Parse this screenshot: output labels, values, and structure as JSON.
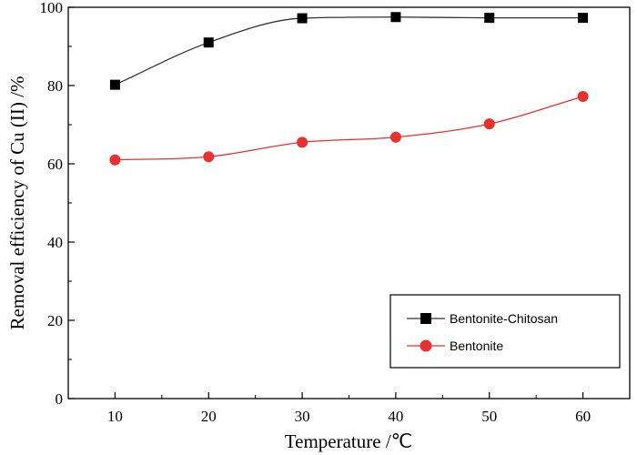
{
  "chart_data": {
    "type": "line",
    "title": "",
    "xlabel": "Temperature /℃",
    "ylabel": "Removal efficiency of Cu (II) /%",
    "xlim": [
      5,
      65
    ],
    "ylim": [
      0,
      100
    ],
    "xticks": [
      10,
      20,
      30,
      40,
      50,
      60
    ],
    "yticks": [
      0,
      20,
      40,
      60,
      80,
      100
    ],
    "x": [
      10,
      20,
      30,
      40,
      50,
      60
    ],
    "grid": false,
    "legend_position": "bottom-right",
    "series": [
      {
        "name": "Bentonite-Chitosan",
        "marker": "square",
        "color": "#000000",
        "line_color": "#333333",
        "values": [
          80.2,
          91.0,
          97.2,
          97.5,
          97.3,
          97.3
        ]
      },
      {
        "name": "Bentonite",
        "marker": "circle",
        "color": "#e8312f",
        "line_color": "#e8312f",
        "values": [
          61.0,
          61.8,
          65.5,
          66.8,
          70.2,
          77.2
        ]
      }
    ]
  }
}
